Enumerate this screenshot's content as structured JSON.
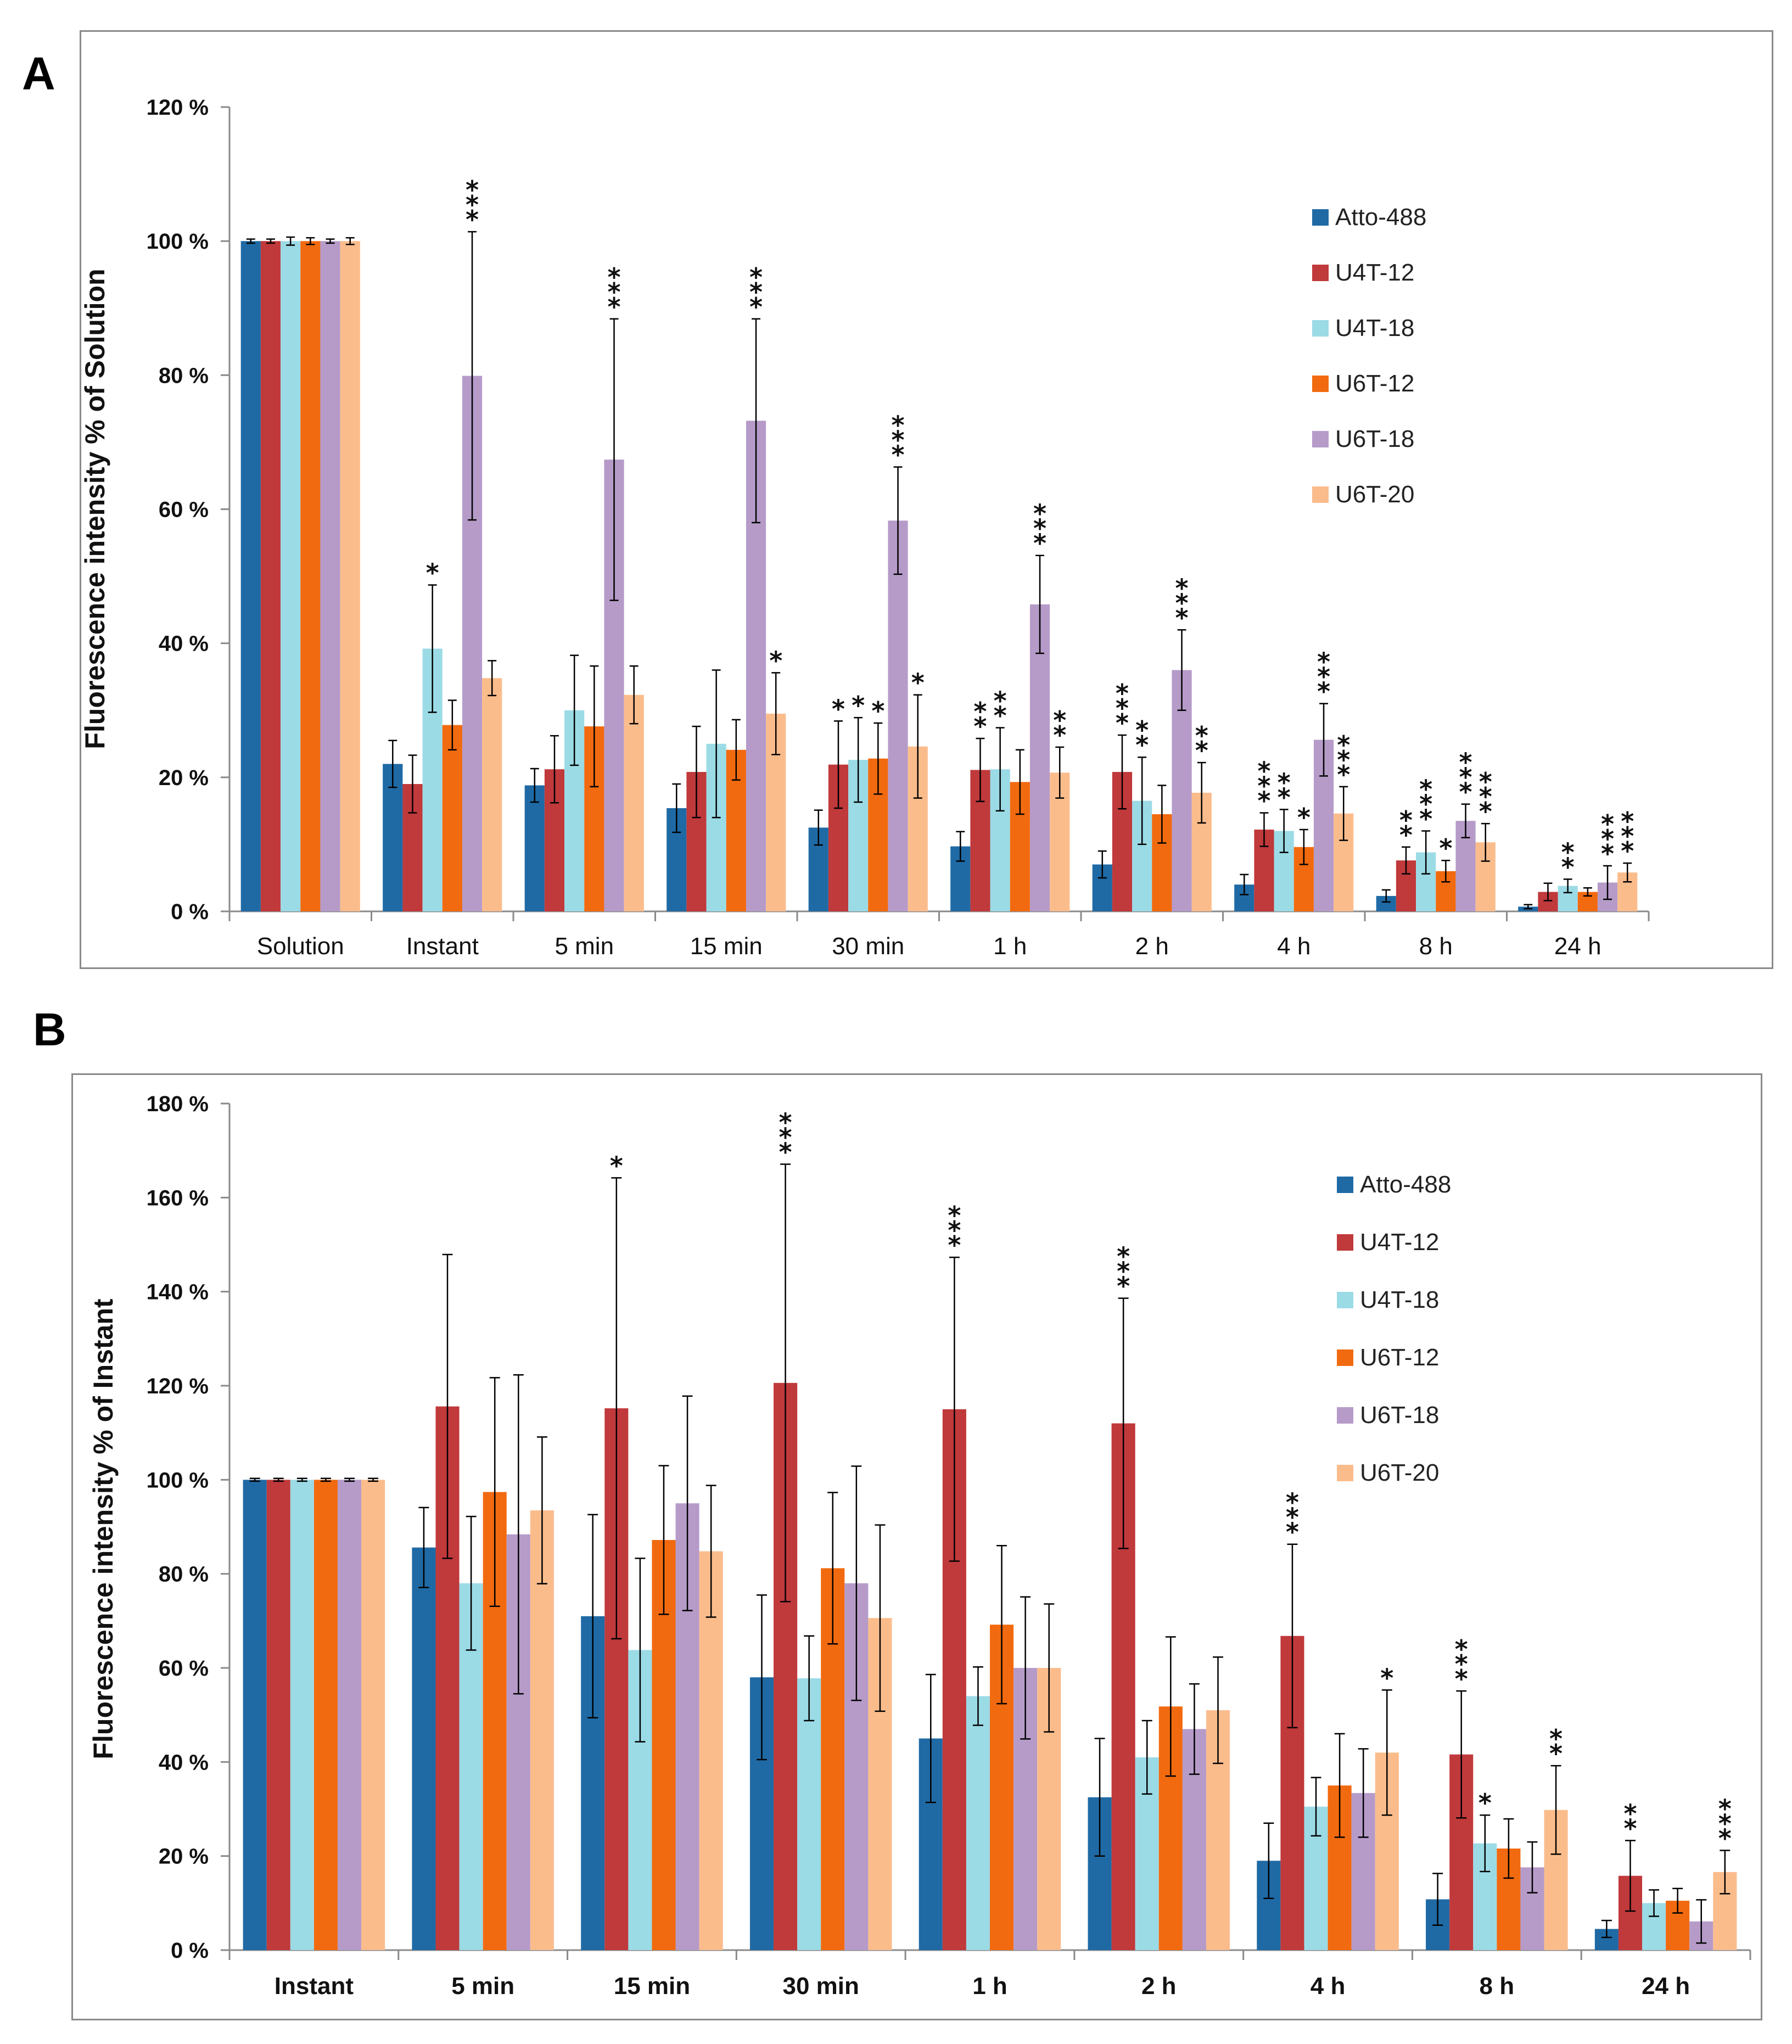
{
  "colors": {
    "Atto-488": "#1f6aa5",
    "U4T-12": "#c0393b",
    "U4T-18": "#9bdbe6",
    "U6T-12": "#f26a0f",
    "U6T-18": "#b69bc9",
    "U6T-20": "#fbbc8c",
    "axis": "#8a8a8a",
    "errorbar": "#000000",
    "frame": "#8a8a8a"
  },
  "chart_data": [
    {
      "panel": "A",
      "type": "bar",
      "title": "",
      "xlabel": "",
      "ylabel": "Fluorescence intensity % of Solution",
      "ylim": [
        0,
        120
      ],
      "yticks": [
        0,
        20,
        40,
        60,
        80,
        100,
        120
      ],
      "ytick_labels": [
        "0 %",
        "20 %",
        "40 %",
        "60 %",
        "80 %",
        "100 %",
        "120 %"
      ],
      "grid": false,
      "legend_position": "top-right",
      "categories": [
        "Solution",
        "Instant",
        "5 min",
        "15 min",
        "30 min",
        "1 h",
        "2 h",
        "4 h",
        "8 h",
        "24 h"
      ],
      "series": [
        {
          "name": "Atto-488",
          "values": [
            100,
            22,
            18.8,
            15.4,
            12.5,
            9.7,
            7,
            4,
            2.3,
            0.7
          ],
          "errors": [
            0.3,
            3.5,
            2.5,
            3.6,
            2.6,
            2.2,
            2,
            1.5,
            0.9,
            0.3
          ],
          "stars": [
            "",
            "",
            "",
            "",
            "",
            "",
            "",
            "",
            "",
            ""
          ]
        },
        {
          "name": "U4T-12",
          "values": [
            100,
            19,
            21.2,
            20.8,
            21.9,
            21.1,
            20.8,
            12.2,
            7.6,
            2.9
          ],
          "errors": [
            0.3,
            4.3,
            5,
            6.8,
            6.5,
            4.7,
            5.5,
            2.5,
            2,
            1.3
          ],
          "stars": [
            "",
            "",
            "",
            "",
            "*",
            "**",
            "***",
            "***",
            "**",
            ""
          ]
        },
        {
          "name": "U4T-18",
          "values": [
            100,
            39.2,
            30,
            25,
            22.6,
            21.2,
            16.5,
            12,
            8.8,
            3.8
          ],
          "errors": [
            0.6,
            9.5,
            8.2,
            11,
            6.3,
            6.2,
            6.5,
            3.2,
            3.2,
            1
          ],
          "stars": [
            "",
            "*",
            "",
            "",
            "*",
            "**",
            "**",
            "**",
            "***",
            "**"
          ]
        },
        {
          "name": "U6T-12",
          "values": [
            100,
            27.8,
            27.6,
            24.1,
            22.8,
            19.3,
            14.5,
            9.6,
            6,
            2.9
          ],
          "errors": [
            0.5,
            3.7,
            9,
            4.5,
            5.3,
            4.8,
            4.3,
            2.6,
            1.6,
            0.6
          ],
          "stars": [
            "",
            "",
            "",
            "",
            "*",
            "",
            "",
            "*",
            "*",
            ""
          ]
        },
        {
          "name": "U6T-18",
          "values": [
            100,
            79.9,
            67.4,
            73.2,
            58.3,
            45.8,
            36,
            25.6,
            13.5,
            4.3
          ],
          "errors": [
            0.3,
            21.5,
            21,
            15.2,
            8,
            7.3,
            6,
            5.4,
            2.5,
            2.5
          ],
          "stars": [
            "",
            "***",
            "***",
            "***",
            "***",
            "***",
            "***",
            "***",
            "***",
            "***"
          ]
        },
        {
          "name": "U6T-20",
          "values": [
            100,
            34.8,
            32.3,
            29.5,
            24.6,
            20.7,
            17.7,
            14.6,
            10.3,
            5.8
          ],
          "errors": [
            0.5,
            2.6,
            4.3,
            6.1,
            7.7,
            3.8,
            4.5,
            4,
            2.8,
            1.4
          ],
          "stars": [
            "",
            "",
            "",
            "*",
            "*",
            "**",
            "**",
            "***",
            "***",
            "***"
          ]
        }
      ]
    },
    {
      "panel": "B",
      "type": "bar",
      "title": "",
      "xlabel": "",
      "ylabel": "Fluorescence intensity % of Instant",
      "ylim": [
        0,
        180
      ],
      "yticks": [
        0,
        20,
        40,
        60,
        80,
        100,
        120,
        140,
        160,
        180
      ],
      "ytick_labels": [
        "0 %",
        "20 %",
        "40 %",
        "60 %",
        "80 %",
        "100 %",
        "120 %",
        "140 %",
        "160 %",
        "180 %"
      ],
      "grid": false,
      "legend_position": "top-right",
      "categories": [
        "Instant",
        "5 min",
        "15 min",
        "30 min",
        "1 h",
        "2 h",
        "4 h",
        "8 h",
        "24 h"
      ],
      "series": [
        {
          "name": "Atto-488",
          "values": [
            100,
            85.6,
            71,
            58,
            45,
            32.5,
            19,
            10.8,
            4.5
          ],
          "errors": [
            0.3,
            8.5,
            21.6,
            17.5,
            13.6,
            12.5,
            8,
            5.5,
            1.8
          ],
          "stars": [
            "",
            "",
            "",
            "",
            "",
            "",
            "",
            "",
            ""
          ]
        },
        {
          "name": "U4T-12",
          "values": [
            100,
            115.6,
            115.2,
            120.6,
            115,
            112,
            66.8,
            41.6,
            15.8
          ],
          "errors": [
            0.3,
            32.3,
            49,
            46.5,
            32.3,
            26.6,
            19.5,
            13.5,
            7.5
          ],
          "stars": [
            "",
            "",
            "*",
            "***",
            "***",
            "***",
            "***",
            "***",
            "**"
          ]
        },
        {
          "name": "U4T-18",
          "values": [
            100,
            78,
            63.8,
            57.8,
            54,
            41,
            30.5,
            22.7,
            10
          ],
          "errors": [
            0.3,
            14.2,
            19.5,
            9,
            6.2,
            7.8,
            6.2,
            6,
            2.8
          ],
          "stars": [
            "",
            "",
            "",
            "",
            "",
            "",
            "",
            "*",
            ""
          ]
        },
        {
          "name": "U6T-12",
          "values": [
            100,
            97.4,
            87.2,
            81.2,
            69.2,
            51.8,
            35,
            21.6,
            10.5
          ],
          "errors": [
            0.3,
            24.3,
            15.8,
            16.1,
            16.8,
            14.8,
            11,
            6.3,
            2.6
          ],
          "stars": [
            "",
            "",
            "",
            "",
            "",
            "",
            "",
            "",
            ""
          ]
        },
        {
          "name": "U6T-18",
          "values": [
            100,
            88.4,
            95,
            78,
            60,
            47,
            33.4,
            17.6,
            6.1
          ],
          "errors": [
            0.3,
            33.9,
            22.8,
            24.9,
            15.1,
            9.6,
            9.4,
            5.4,
            4.6
          ],
          "stars": [
            "",
            "",
            "",
            "",
            "",
            "",
            "",
            "",
            ""
          ]
        },
        {
          "name": "U6T-20",
          "values": [
            100,
            93.5,
            84.8,
            70.6,
            60,
            51,
            42,
            29.8,
            16.6
          ],
          "errors": [
            0.3,
            15.6,
            14,
            19.8,
            13.6,
            11.3,
            13.3,
            9.4,
            4.6
          ],
          "stars": [
            "",
            "",
            "",
            "",
            "",
            "",
            "*",
            "**",
            "***"
          ]
        }
      ]
    }
  ]
}
